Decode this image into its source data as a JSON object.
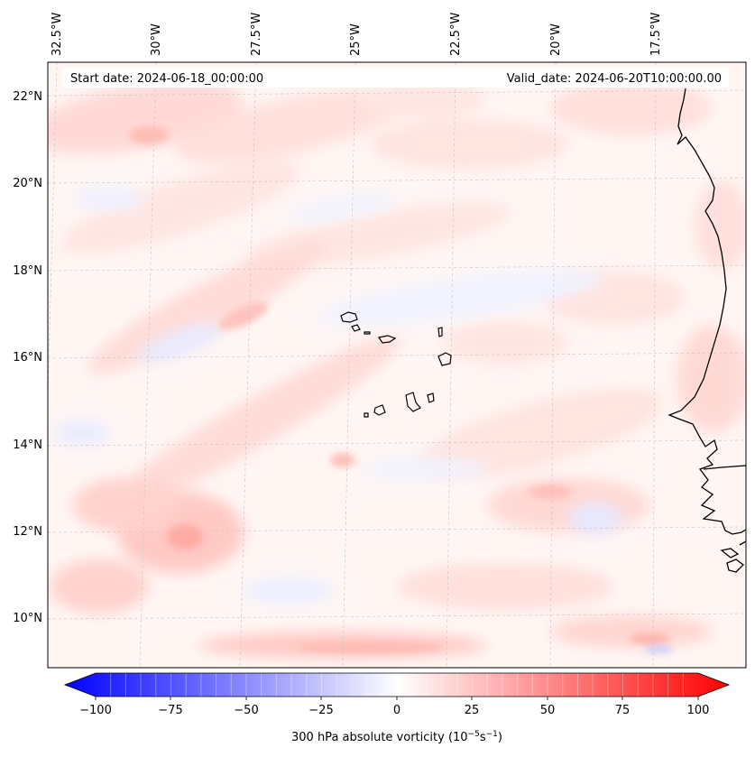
{
  "map": {
    "start_label": "Start date: 2024-06-18_00:00:00",
    "valid_label": "Valid_date: 2024-06-20T10:00:00.00",
    "lon_labels": [
      "32.5°W",
      "30°W",
      "27.5°W",
      "25°W",
      "22.5°W",
      "20°W",
      "17.5°W"
    ],
    "lat_labels": [
      "22°N",
      "20°N",
      "18°N",
      "16°N",
      "14°N",
      "12°N",
      "10°N"
    ]
  },
  "colorbar": {
    "ticks": [
      "−100",
      "−75",
      "−50",
      "−25",
      "0",
      "25",
      "50",
      "75",
      "100"
    ],
    "label_main": "300 hPa absolute vorticity (10",
    "label_exp1": "−5",
    "label_mid": "s",
    "label_exp2": "−1",
    "label_end": ")",
    "min": -100,
    "max": 100,
    "min_color": "#0000ff",
    "mid_color": "#ffffff",
    "max_color": "#ff0000"
  }
}
